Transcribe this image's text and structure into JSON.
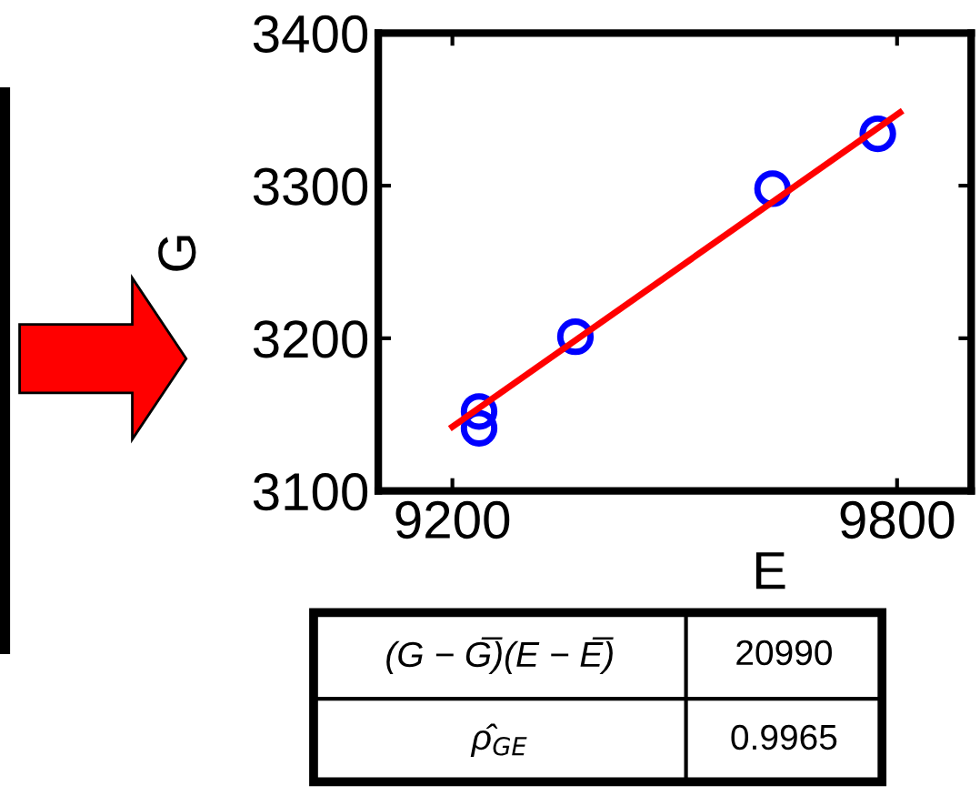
{
  "chart_data": {
    "type": "scatter",
    "xlabel": "E",
    "ylabel": "G",
    "xlim": [
      9100,
      9900
    ],
    "xticks": [
      {
        "value": 9200,
        "label": "9200"
      },
      {
        "value": 9800,
        "label": "9800"
      }
    ],
    "ylim": [
      3100,
      3400
    ],
    "yticks": [
      3100,
      3200,
      3300,
      3400
    ],
    "series": [
      {
        "color": "#0000ff",
        "marker": "circle",
        "x": [
          9236,
          9236,
          9366,
          9632,
          9774
        ],
        "values": [
          3152,
          3141,
          3201,
          3298,
          3334
        ]
      },
      {
        "type": "line",
        "color": "#ff0000",
        "marker": "none",
        "line_style": "solid",
        "x": [
          9200,
          9804
        ],
        "values": [
          3142,
          3348
        ]
      }
    ],
    "annotations": [
      "(G − G̅)(E − E̅)",
      "20990",
      "ρ̂$_{GE}$",
      "0.9965"
    ]
  }
}
